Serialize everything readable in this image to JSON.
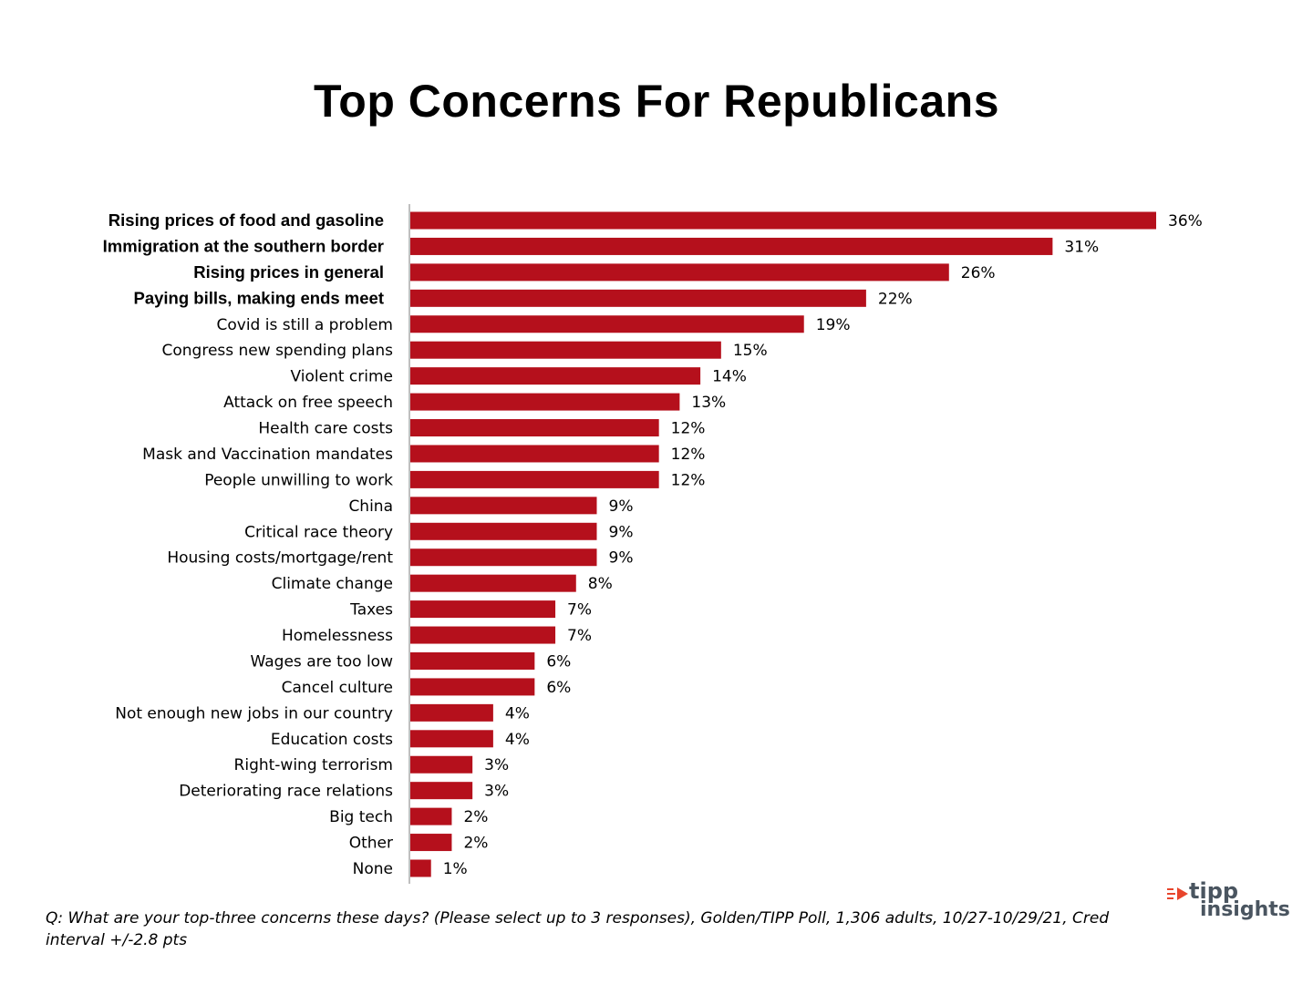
{
  "title": "Top Concerns For Republicans",
  "footnote": "Q: What are your top-three concerns these days? (Please select up to 3 responses), Golden/TIPP Poll, 1,306 adults, 10/27-10/29/21, Cred interval +/-2.8 pts",
  "logo": {
    "line1": "tipp",
    "line2": "insights"
  },
  "colors": {
    "bar": "#b5101c",
    "axis": "#bfbfbf",
    "logo_text": "#4a5560",
    "logo_mark": "#e8452c"
  },
  "chart_data": {
    "type": "bar",
    "orientation": "horizontal",
    "title": "Top Concerns For Republicans",
    "xlabel": "",
    "ylabel": "",
    "xlim": [
      0,
      36
    ],
    "grid": false,
    "legend": "none",
    "bold_categories": 4,
    "categories": [
      "Rising prices of food and gasoline",
      "Immigration at the southern border",
      "Rising prices in general",
      "Paying bills, making ends meet",
      "Covid is still a problem",
      "Congress new spending plans",
      "Violent crime",
      "Attack on free speech",
      "Health care costs",
      "Mask and Vaccination mandates",
      "People unwilling to work",
      "China",
      "Critical race theory",
      "Housing costs/mortgage/rent",
      "Climate  change",
      "Taxes",
      "Homelessness",
      "Wages are too low",
      "Cancel culture",
      "Not enough new jobs in our country",
      "Education costs",
      "Right-wing terrorism",
      "Deteriorating race relations",
      "Big tech",
      "Other",
      "None"
    ],
    "values": [
      36,
      31,
      26,
      22,
      19,
      15,
      14,
      13,
      12,
      12,
      12,
      9,
      9,
      9,
      8,
      7,
      7,
      6,
      6,
      4,
      4,
      3,
      3,
      2,
      2,
      1
    ],
    "labels": [
      "36%",
      "31%",
      "26%",
      "22%",
      "19%",
      "15%",
      "14%",
      "13%",
      "12%",
      "12%",
      "12%",
      "9%",
      "9%",
      "9%",
      "8%",
      "7%",
      "7%",
      "6%",
      "6%",
      "4%",
      "4%",
      "3%",
      "3%",
      "2%",
      "2%",
      "1%"
    ]
  }
}
